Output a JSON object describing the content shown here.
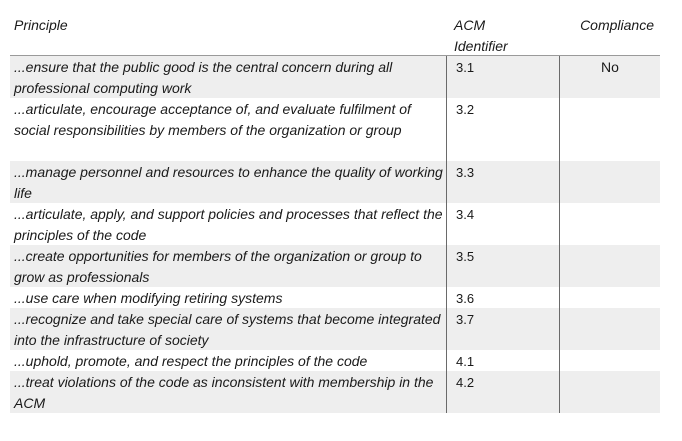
{
  "headers": {
    "principle": "Principle",
    "identifier": "ACM Identifier",
    "compliance": "Compliance"
  },
  "rows": [
    {
      "principle": "...ensure that the public good is the central concern during all professional computing work",
      "identifier": "3.1",
      "compliance": "No"
    },
    {
      "principle": "...articulate, encourage acceptance of, and evaluate fulfilment of social responsibilities by members of the organization or group",
      "identifier": "3.2",
      "compliance": ""
    },
    {
      "principle": "...manage personnel and resources to enhance the quality of working life",
      "identifier": "3.3",
      "compliance": ""
    },
    {
      "principle": "...articulate, apply, and support policies and processes that reflect the principles of the code",
      "identifier": "3.4",
      "compliance": ""
    },
    {
      "principle": "...create opportunities for members of the organization or group to grow as professionals",
      "identifier": "3.5",
      "compliance": ""
    },
    {
      "principle": "...use care when modifying retiring systems",
      "identifier": "3.6",
      "compliance": ""
    },
    {
      "principle": "...recognize and take special care of systems that become integrated into the infrastructure of society",
      "identifier": "3.7",
      "compliance": ""
    },
    {
      "principle": "...uphold, promote, and respect the principles of the code",
      "identifier": "4.1",
      "compliance": ""
    },
    {
      "principle": "...treat violations of the code as inconsistent with membership in the ACM",
      "identifier": "4.2",
      "compliance": ""
    }
  ]
}
